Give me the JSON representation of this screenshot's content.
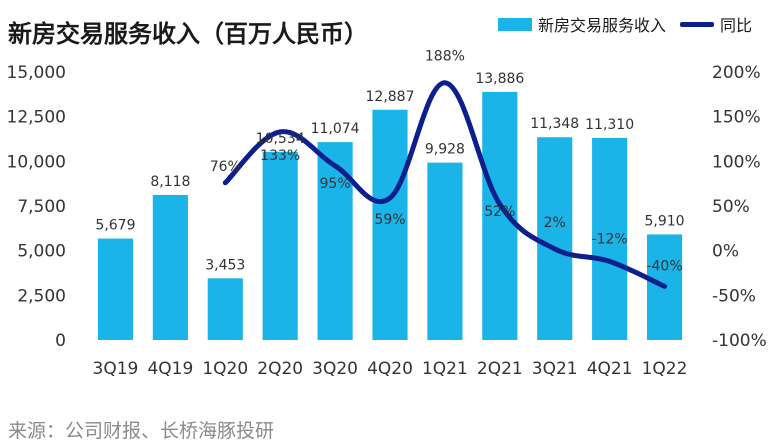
{
  "title": "新房交易服务收入（百万人民币）",
  "source": "来源：公司财报、长桥海豚投研",
  "colors": {
    "bar": "#1BB4E8",
    "line": "#0D1F8C"
  },
  "chart_data": {
    "type": "bar",
    "categories": [
      "3Q19",
      "4Q19",
      "1Q20",
      "2Q20",
      "3Q20",
      "4Q20",
      "1Q21",
      "2Q21",
      "3Q21",
      "4Q21",
      "1Q22"
    ],
    "series": [
      {
        "name": "新房交易服务收入",
        "type": "bar",
        "axis": "left",
        "values": [
          5679,
          8118,
          3453,
          10534,
          11074,
          12887,
          9928,
          13886,
          11348,
          11310,
          5910
        ],
        "labels": [
          "5,679",
          "8,118",
          "3,453",
          "10,534",
          "11,074",
          "12,887",
          "9,928",
          "13,886",
          "11,348",
          "11,310",
          "5,910"
        ]
      },
      {
        "name": "同比",
        "type": "line",
        "axis": "right",
        "values": [
          null,
          null,
          76,
          133,
          95,
          59,
          188,
          52,
          2,
          -12,
          -40
        ],
        "labels": [
          "",
          "",
          "76%",
          "133%",
          "95%",
          "59%",
          "188%",
          "52%",
          "2%",
          "-12%",
          "-40%"
        ]
      }
    ],
    "y_left": {
      "min": 0,
      "max": 15000,
      "ticks": [
        "0",
        "2,500",
        "5,000",
        "7,500",
        "10,000",
        "12,500",
        "15,000"
      ]
    },
    "y_right": {
      "min": -100,
      "max": 200,
      "ticks": [
        "-100%",
        "-50%",
        "0%",
        "50%",
        "100%",
        "150%",
        "200%"
      ]
    },
    "legend_position": "top-right",
    "grid": false
  }
}
